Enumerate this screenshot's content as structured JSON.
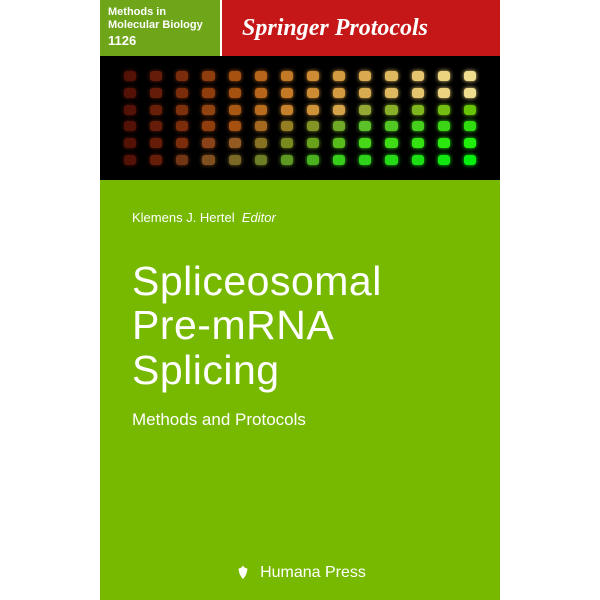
{
  "series": {
    "name": "Methods in Molecular Biology",
    "volume": "1126"
  },
  "brand": "Springer Protocols",
  "editor": {
    "name": "Klemens J. Hertel",
    "role": "Editor"
  },
  "title_lines": [
    "Spliceosomal",
    "Pre-mRNA",
    "Splicing"
  ],
  "subtitle": "Methods and Protocols",
  "publisher": "Humana Press",
  "colors": {
    "series_bg": "#6fa519",
    "brand_bg": "#c51718",
    "main_bg": "#77b800",
    "gel_bg": "#000000",
    "text": "#ffffff"
  },
  "gel": {
    "rows": 6,
    "cols": 14,
    "row_colors": [
      [
        "#7a1a0a",
        "#8f2a0e",
        "#a83d10",
        "#c05212",
        "#d86a15",
        "#e88021",
        "#f2952f",
        "#f7a83e",
        "#f9b74d",
        "#fac45c",
        "#fbd06b",
        "#fcda7a",
        "#fde389",
        "#fdea97"
      ],
      [
        "#7a1a0a",
        "#8f2a0e",
        "#a83d10",
        "#c05212",
        "#d86a15",
        "#e88021",
        "#f2952f",
        "#f7a83e",
        "#f9b74d",
        "#fac45c",
        "#fbd06b",
        "#fcda7a",
        "#fde389",
        "#fdea97"
      ],
      [
        "#7a1a0a",
        "#912c0e",
        "#aa4211",
        "#c25a14",
        "#da7318",
        "#e98b26",
        "#f39f35",
        "#f8b145",
        "#f9bf55",
        "#a9c23d",
        "#9ac52e",
        "#8bc820",
        "#7ccb13",
        "#6dce07"
      ],
      [
        "#7a1a0a",
        "#8f2a0e",
        "#a83d10",
        "#c05212",
        "#d86a15",
        "#d28528",
        "#b89b2a",
        "#9eb12c",
        "#84c72e",
        "#6add30",
        "#5ce028",
        "#4ee320",
        "#40e618",
        "#32e910"
      ],
      [
        "#7a1a0a",
        "#8f2a0e",
        "#a83d10",
        "#b85a20",
        "#c07530",
        "#aa8f2c",
        "#94a928",
        "#7ec324",
        "#68dd20",
        "#52f71c",
        "#46f818",
        "#3af914",
        "#2efa10",
        "#22fb0c"
      ],
      [
        "#7a1a0a",
        "#8f2a0e",
        "#9d4a1c",
        "#ab6a2a",
        "#a28832",
        "#8aa22e",
        "#72bc2a",
        "#5ad626",
        "#42f022",
        "#36f21e",
        "#2af41a",
        "#1ef616",
        "#12f812",
        "#06fa0e"
      ]
    ]
  }
}
